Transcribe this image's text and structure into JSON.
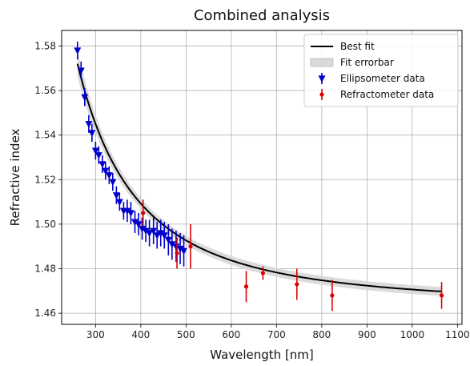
{
  "chart_data": {
    "type": "scatter",
    "title": "Combined analysis",
    "xlabel": "Wavelength [nm]",
    "ylabel": "Refractive index",
    "xlim": [
      225,
      1110
    ],
    "ylim": [
      1.455,
      1.587
    ],
    "xticks": [
      300,
      400,
      500,
      600,
      700,
      800,
      900,
      1000,
      1100
    ],
    "yticks": [
      1.46,
      1.48,
      1.5,
      1.52,
      1.54,
      1.56,
      1.58
    ],
    "xtick_labels": [
      "300",
      "400",
      "500",
      "600",
      "700",
      "800",
      "900",
      "1000",
      "1100"
    ],
    "ytick_labels": [
      "1.46",
      "1.48",
      "1.50",
      "1.52",
      "1.54",
      "1.56",
      "1.58"
    ],
    "grid": true,
    "legend_position": "top-right",
    "fit": {
      "name": "Best fit",
      "band_name": "Fit errorbar",
      "color": "#000000",
      "band_color": "#d9d9d9",
      "cauchy_A": 1.4633,
      "cauchy_B": 7350,
      "band_halfwidth": 0.002,
      "x_range": [
        260,
        1065
      ]
    },
    "series": [
      {
        "name": "Ellipsometer data",
        "marker": "triangle-down",
        "color": "#0000cc",
        "x": [
          260,
          268,
          276,
          285,
          292,
          300,
          307,
          315,
          322,
          330,
          338,
          346,
          353,
          362,
          370,
          378,
          387,
          395,
          403,
          411,
          419,
          428,
          436,
          444,
          452,
          461,
          469,
          478,
          487,
          495
        ],
        "y": [
          1.578,
          1.569,
          1.557,
          1.545,
          1.541,
          1.533,
          1.531,
          1.527,
          1.524,
          1.522,
          1.519,
          1.513,
          1.51,
          1.506,
          1.506,
          1.505,
          1.501,
          1.5,
          1.498,
          1.497,
          1.496,
          1.497,
          1.495,
          1.496,
          1.495,
          1.493,
          1.491,
          1.49,
          1.489,
          1.488
        ],
        "yerr": [
          0.004,
          0.004,
          0.004,
          0.004,
          0.004,
          0.004,
          0.004,
          0.004,
          0.004,
          0.004,
          0.004,
          0.004,
          0.004,
          0.004,
          0.005,
          0.005,
          0.005,
          0.005,
          0.005,
          0.005,
          0.006,
          0.006,
          0.006,
          0.006,
          0.006,
          0.007,
          0.007,
          0.007,
          0.007,
          0.007
        ]
      },
      {
        "name": "Refractometer data",
        "marker": "circle",
        "color": "#dd0000",
        "x": [
          405,
          480,
          510,
          633,
          670,
          745,
          823,
          1065
        ],
        "y": [
          1.505,
          1.487,
          1.49,
          1.472,
          1.478,
          1.473,
          1.468,
          1.468
        ],
        "yerr": [
          0.006,
          0.007,
          0.01,
          0.007,
          0.003,
          0.007,
          0.007,
          0.006
        ]
      }
    ]
  }
}
